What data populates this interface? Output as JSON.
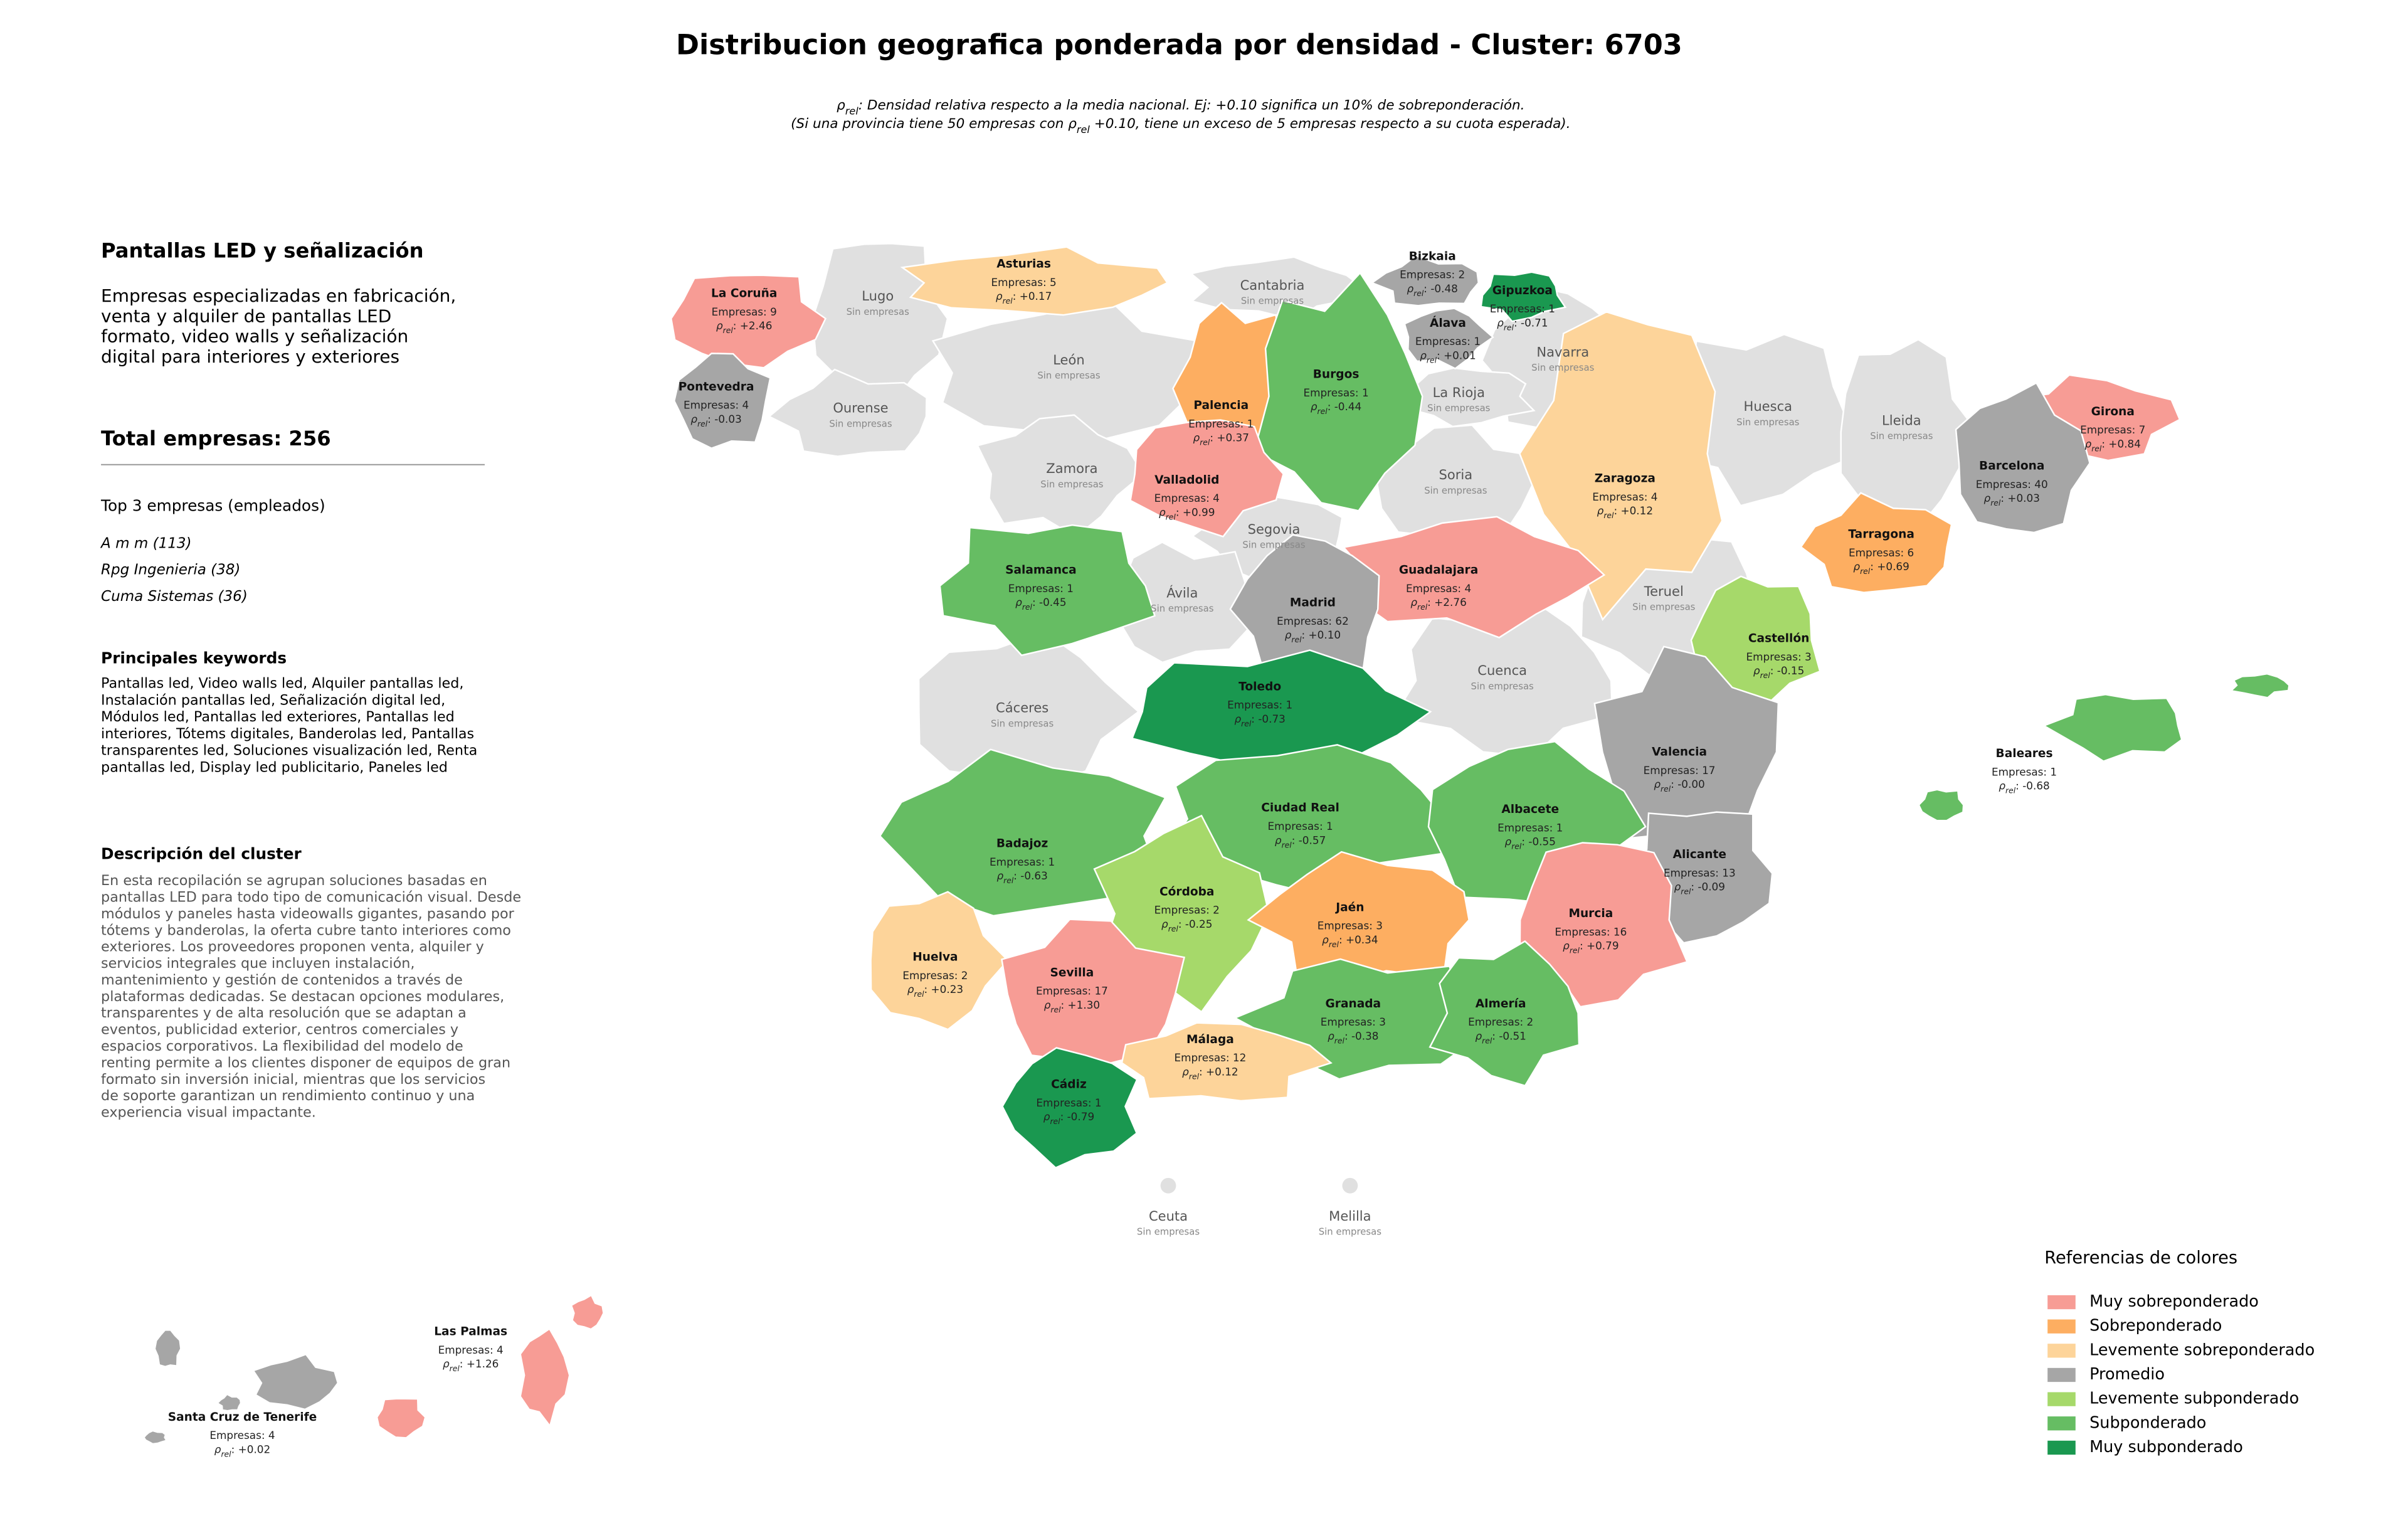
{
  "title": "Distribucion geografica ponderada por densidad - Cluster: 6703",
  "subtitle": [
    [
      {
        "text": "ρ"
      },
      {
        "text": "rel",
        "sub": true
      },
      {
        "text": ": Densidad relativa respecto a la media nacional. Ej: +0.10 significa un 10% de sobreponderación."
      }
    ],
    [
      {
        "text": "(Si una provincia tiene 50 empresas con ρ"
      },
      {
        "text": "rel",
        "sub": true
      },
      {
        "text": " +0.10, tiene un exceso de 5 empresas respecto a su cuota esperada)."
      }
    ]
  ],
  "panel": {
    "heading": "Pantallas LED y señalización",
    "summary": [
      "Empresas especializadas en fabricación,",
      "venta y alquiler de pantallas LED",
      "formato, video walls y señalización",
      "digital para interiores y exteriores"
    ],
    "total": "Total empresas: 256",
    "top_title": "Top 3 empresas (empleados)",
    "top": [
      "A m m (113)",
      "Rpg Ingenieria (38)",
      "Cuma Sistemas (36)"
    ],
    "keywords_title": "Principales keywords",
    "keywords": [
      "Pantallas led, Video walls led, Alquiler pantallas led,",
      "Instalación pantallas led, Señalización digital led,",
      "Módulos led, Pantallas led exteriores, Pantallas led",
      "interiores, Tótems digitales, Banderolas led, Pantallas",
      "transparentes led, Soluciones visualización led, Renta",
      "pantallas led, Display led publicitario, Paneles led"
    ],
    "description_title": "Descripción del cluster",
    "description": [
      "En esta recopilación se agrupan soluciones basadas en",
      "pantallas LED para todo tipo de comunicación visual. Desde",
      "módulos y paneles hasta videowalls gigantes, pasando por",
      "tótems y banderolas, la oferta cubre tanto interiores como",
      "exteriores. Los proveedores proponen venta, alquiler y",
      "servicios integrales que incluyen instalación,",
      "mantenimiento y gestión de contenidos a través de",
      "plataformas dedicadas. Se destacan opciones modulares,",
      "transparentes y de alta resolución que se adaptan a",
      "eventos, publicidad exterior, centros comerciales y",
      "espacios corporativos. La flexibilidad del modelo de",
      "renting permite a los clientes disponer de equipos de gran",
      "formato sin inversión inicial, mientras que los servicios",
      "de soporte garantizan un rendimiento continuo y una",
      "experiencia visual impactante."
    ]
  },
  "rho_symbol": "ρ",
  "rho_subscript": "rel",
  "rho_separator": ": ",
  "empty_color": "#e0e0e0",
  "provinces": [
    {
      "name": "La Coruña",
      "companies": "Empresas: 9",
      "rho": "+2.46",
      "color": "#f79c95"
    },
    {
      "name": "Asturias",
      "companies": "Empresas: 5",
      "rho": "+0.17",
      "color": "#fdd49a"
    },
    {
      "name": "Bizkaia",
      "companies": "Empresas: 2",
      "rho": "-0.48",
      "color": "#a6a6a6"
    },
    {
      "name": "Gipuzkoa",
      "companies": "Empresas: 1",
      "rho": "-0.71",
      "color": "#1a9850"
    },
    {
      "name": "Álava",
      "companies": "Empresas: 1",
      "rho": "+0.01",
      "color": "#a6a6a6"
    },
    {
      "name": "Pontevedra",
      "companies": "Empresas: 4",
      "rho": "-0.03",
      "color": "#a6a6a6"
    },
    {
      "name": "Palencia",
      "companies": "Empresas: 1",
      "rho": "+0.37",
      "color": "#fdae61"
    },
    {
      "name": "Burgos",
      "companies": "Empresas: 1",
      "rho": "-0.44",
      "color": "#66bd63"
    },
    {
      "name": "Girona",
      "companies": "Empresas: 7",
      "rho": "+0.84",
      "color": "#f79c95"
    },
    {
      "name": "Zaragoza",
      "companies": "Empresas: 4",
      "rho": "+0.12",
      "color": "#fdd49a"
    },
    {
      "name": "Valladolid",
      "companies": "Empresas: 4",
      "rho": "+0.99",
      "color": "#f79c95"
    },
    {
      "name": "Barcelona",
      "companies": "Empresas: 40",
      "rho": "+0.03",
      "color": "#a6a6a6"
    },
    {
      "name": "Tarragona",
      "companies": "Empresas: 6",
      "rho": "+0.69",
      "color": "#fdae61"
    },
    {
      "name": "Salamanca",
      "companies": "Empresas: 1",
      "rho": "-0.45",
      "color": "#66bd63"
    },
    {
      "name": "Guadalajara",
      "companies": "Empresas: 4",
      "rho": "+2.76",
      "color": "#f79c95"
    },
    {
      "name": "Madrid",
      "companies": "Empresas: 62",
      "rho": "+0.10",
      "color": "#a6a6a6"
    },
    {
      "name": "Castellón",
      "companies": "Empresas: 3",
      "rho": "-0.15",
      "color": "#a6d96a"
    },
    {
      "name": "Toledo",
      "companies": "Empresas: 1",
      "rho": "-0.73",
      "color": "#1a9850"
    },
    {
      "name": "Valencia",
      "companies": "Empresas: 17",
      "rho": "-0.00",
      "color": "#a6a6a6"
    },
    {
      "name": "Baleares",
      "companies": "Empresas: 1",
      "rho": "-0.68",
      "color": "#66bd63"
    },
    {
      "name": "Ciudad Real",
      "companies": "Empresas: 1",
      "rho": "-0.57",
      "color": "#66bd63"
    },
    {
      "name": "Albacete",
      "companies": "Empresas: 1",
      "rho": "-0.55",
      "color": "#66bd63"
    },
    {
      "name": "Badajoz",
      "companies": "Empresas: 1",
      "rho": "-0.63",
      "color": "#66bd63"
    },
    {
      "name": "Alicante",
      "companies": "Empresas: 13",
      "rho": "-0.09",
      "color": "#a6a6a6"
    },
    {
      "name": "Córdoba",
      "companies": "Empresas: 2",
      "rho": "-0.25",
      "color": "#a6d96a"
    },
    {
      "name": "Jaén",
      "companies": "Empresas: 3",
      "rho": "+0.34",
      "color": "#fdae61"
    },
    {
      "name": "Murcia",
      "companies": "Empresas: 16",
      "rho": "+0.79",
      "color": "#f79c95"
    },
    {
      "name": "Huelva",
      "companies": "Empresas: 2",
      "rho": "+0.23",
      "color": "#fdd49a"
    },
    {
      "name": "Sevilla",
      "companies": "Empresas: 17",
      "rho": "+1.30",
      "color": "#f79c95"
    },
    {
      "name": "Granada",
      "companies": "Empresas: 3",
      "rho": "-0.38",
      "color": "#66bd63"
    },
    {
      "name": "Almería",
      "companies": "Empresas: 2",
      "rho": "-0.51",
      "color": "#66bd63"
    },
    {
      "name": "Málaga",
      "companies": "Empresas: 12",
      "rho": "+0.12",
      "color": "#fdd49a"
    },
    {
      "name": "Cádiz",
      "companies": "Empresas: 1",
      "rho": "-0.79",
      "color": "#1a9850"
    },
    {
      "name": "Las Palmas",
      "companies": "Empresas: 4",
      "rho": "+1.26",
      "color": "#f79c95"
    },
    {
      "name": "Santa Cruz de Tenerife",
      "companies": "Empresas: 4",
      "rho": "+0.02",
      "color": "#a6a6a6"
    }
  ],
  "empty_provinces": [
    {
      "name": "Lugo",
      "note": "Sin empresas"
    },
    {
      "name": "Cantabria",
      "note": "Sin empresas"
    },
    {
      "name": "León",
      "note": "Sin empresas"
    },
    {
      "name": "Navarra",
      "note": "Sin empresas"
    },
    {
      "name": "Ourense",
      "note": "Sin empresas"
    },
    {
      "name": "La Rioja",
      "note": "Sin empresas"
    },
    {
      "name": "Huesca",
      "note": "Sin empresas"
    },
    {
      "name": "Lleida",
      "note": "Sin empresas"
    },
    {
      "name": "Zamora",
      "note": "Sin empresas"
    },
    {
      "name": "Soria",
      "note": "Sin empresas"
    },
    {
      "name": "Segovia",
      "note": "Sin empresas"
    },
    {
      "name": "Ávila",
      "note": "Sin empresas"
    },
    {
      "name": "Teruel",
      "note": "Sin empresas"
    },
    {
      "name": "Cuenca",
      "note": "Sin empresas"
    },
    {
      "name": "Cáceres",
      "note": "Sin empresas"
    },
    {
      "name": "Ceuta",
      "note": "Sin empresas"
    },
    {
      "name": "Melilla",
      "note": "Sin empresas"
    }
  ],
  "legend": {
    "title": "Referencias de colores",
    "items": [
      {
        "label": "Muy sobreponderado",
        "color": "#f79c95"
      },
      {
        "label": "Sobreponderado",
        "color": "#fdae61"
      },
      {
        "label": "Levemente sobreponderado",
        "color": "#fdd49a"
      },
      {
        "label": "Promedio",
        "color": "#a6a6a6"
      },
      {
        "label": "Levemente subponderado",
        "color": "#a6d96a"
      },
      {
        "label": "Subponderado",
        "color": "#66bd63"
      },
      {
        "label": "Muy subponderado",
        "color": "#1a9850"
      }
    ]
  }
}
